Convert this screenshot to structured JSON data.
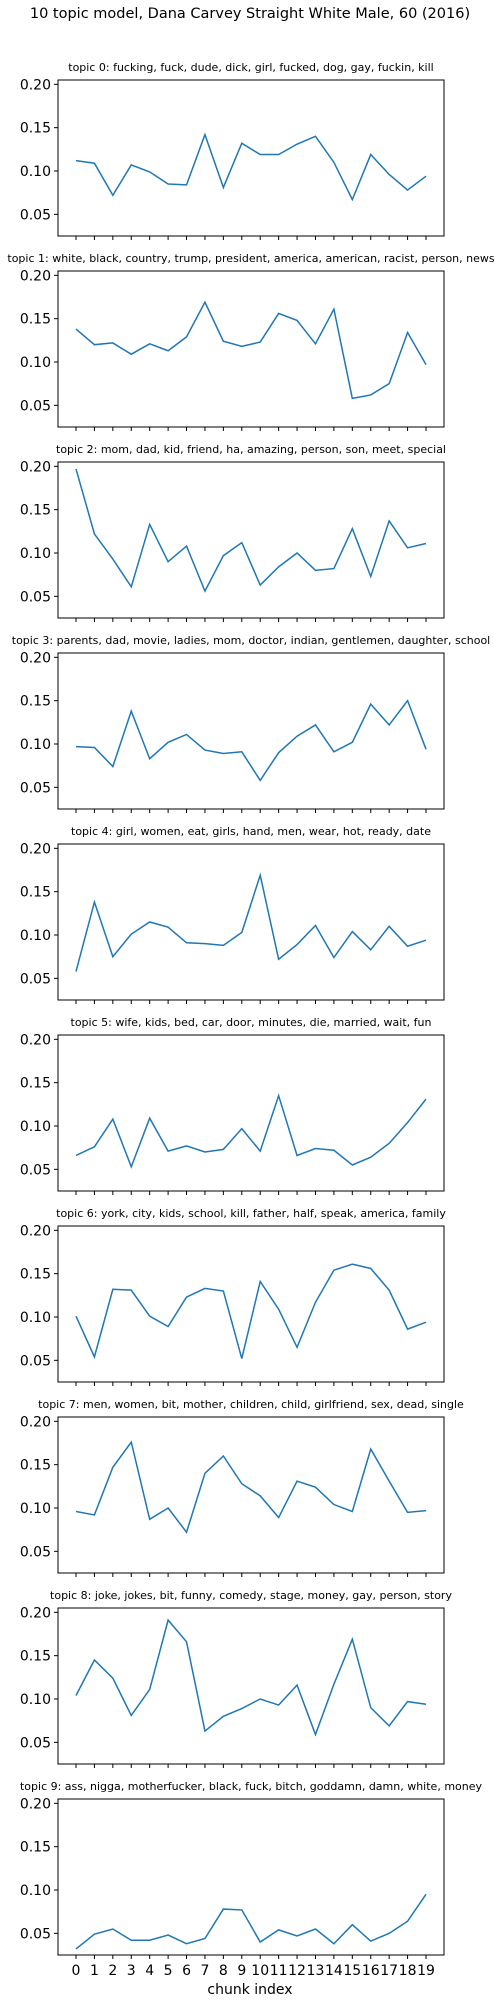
{
  "title": "10 topic model, Dana Carvey Straight White Male, 60 (2016)",
  "colors": {
    "line": "#1f77b4",
    "axes": "#000000",
    "background": "#ffffff"
  },
  "chart_data": {
    "type": "line",
    "xlabel": "chunk index",
    "x": [
      0,
      1,
      2,
      3,
      4,
      5,
      6,
      7,
      8,
      9,
      10,
      11,
      12,
      13,
      14,
      15,
      16,
      17,
      18,
      19
    ],
    "ylim": [
      0.025,
      0.205
    ],
    "yticks": [
      "0.05",
      "0.10",
      "0.15",
      "0.20"
    ],
    "grid": false,
    "panels": [
      {
        "title": "topic 0: fucking, fuck, dude, dick, girl, fucked, dog, gay, fuckin, kill",
        "values": [
          0.112,
          0.109,
          0.072,
          0.107,
          0.099,
          0.085,
          0.084,
          0.142,
          0.081,
          0.132,
          0.119,
          0.119,
          0.131,
          0.14,
          0.11,
          0.067,
          0.119,
          0.096,
          0.078,
          0.094
        ]
      },
      {
        "title": "topic 1: white, black, country, trump, president, america, american, racist, person, news",
        "values": [
          0.138,
          0.12,
          0.122,
          0.109,
          0.121,
          0.113,
          0.129,
          0.169,
          0.124,
          0.118,
          0.123,
          0.156,
          0.148,
          0.121,
          0.161,
          0.058,
          0.062,
          0.075,
          0.134,
          0.097
        ]
      },
      {
        "title": "topic 2: mom, dad, kid, friend, ha, amazing, person, son, meet, special",
        "values": [
          0.197,
          0.122,
          0.093,
          0.061,
          0.133,
          0.09,
          0.108,
          0.056,
          0.097,
          0.112,
          0.063,
          0.084,
          0.1,
          0.08,
          0.082,
          0.128,
          0.073,
          0.137,
          0.106,
          0.111
        ]
      },
      {
        "title": "topic 3: parents, dad, movie, ladies, mom, doctor, indian, gentlemen, daughter, school",
        "values": [
          0.097,
          0.096,
          0.074,
          0.138,
          0.083,
          0.102,
          0.111,
          0.093,
          0.089,
          0.091,
          0.058,
          0.09,
          0.109,
          0.122,
          0.091,
          0.102,
          0.146,
          0.122,
          0.15,
          0.094
        ]
      },
      {
        "title": "topic 4: girl, women, eat, girls, hand, men, wear, hot, ready, date",
        "values": [
          0.058,
          0.138,
          0.075,
          0.101,
          0.115,
          0.109,
          0.091,
          0.09,
          0.088,
          0.103,
          0.169,
          0.072,
          0.089,
          0.111,
          0.074,
          0.104,
          0.083,
          0.11,
          0.087,
          0.094
        ]
      },
      {
        "title": "topic 5: wife, kids, bed, car, door, minutes, die, married, wait, fun",
        "values": [
          0.066,
          0.076,
          0.108,
          0.053,
          0.109,
          0.071,
          0.077,
          0.07,
          0.073,
          0.097,
          0.071,
          0.135,
          0.066,
          0.074,
          0.072,
          0.055,
          0.064,
          0.08,
          0.104,
          0.131
        ]
      },
      {
        "title": "topic 6: york, city, kids, school, kill, father, half, speak, america, family",
        "values": [
          0.101,
          0.054,
          0.132,
          0.131,
          0.101,
          0.089,
          0.123,
          0.133,
          0.13,
          0.052,
          0.141,
          0.109,
          0.065,
          0.117,
          0.154,
          0.161,
          0.156,
          0.131,
          0.086,
          0.094
        ]
      },
      {
        "title": "topic 7: men, women, bit, mother, children, child, girlfriend, sex, dead, single",
        "values": [
          0.096,
          0.092,
          0.147,
          0.176,
          0.087,
          0.1,
          0.072,
          0.14,
          0.16,
          0.128,
          0.114,
          0.089,
          0.131,
          0.124,
          0.104,
          0.096,
          0.168,
          0.131,
          0.095,
          0.097
        ]
      },
      {
        "title": "topic 8: joke, jokes, bit, funny, comedy, stage, money, gay, person, story",
        "values": [
          0.104,
          0.145,
          0.124,
          0.081,
          0.111,
          0.191,
          0.166,
          0.063,
          0.08,
          0.089,
          0.1,
          0.093,
          0.116,
          0.059,
          0.117,
          0.169,
          0.09,
          0.069,
          0.097,
          0.094
        ]
      },
      {
        "title": "topic 9: ass, nigga, motherfucker, black, fuck, bitch, goddamn, damn, white, money",
        "values": [
          0.032,
          0.049,
          0.055,
          0.042,
          0.042,
          0.048,
          0.038,
          0.044,
          0.078,
          0.077,
          0.04,
          0.054,
          0.047,
          0.055,
          0.038,
          0.06,
          0.041,
          0.05,
          0.064,
          0.095
        ]
      }
    ]
  }
}
